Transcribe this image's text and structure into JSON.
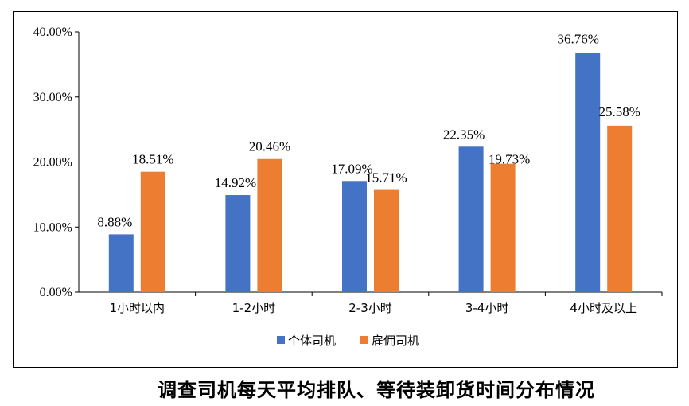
{
  "caption": "调查司机每天平均排队、等待装卸货时间分布情况",
  "chart_data": {
    "type": "bar",
    "categories": [
      "1小时以内",
      "1-2小时",
      "2-3小时",
      "3-4小时",
      "4小时及以上"
    ],
    "series": [
      {
        "name": "个体司机",
        "values": [
          8.88,
          14.92,
          17.09,
          22.35,
          36.76
        ],
        "color": "#4472C4",
        "labels": [
          "8.88%",
          "14.92%",
          "17.09%",
          "22.35%",
          "36.76%"
        ]
      },
      {
        "name": "雇佣司机",
        "values": [
          18.51,
          20.46,
          15.71,
          19.73,
          25.58
        ],
        "color": "#ED7D31",
        "labels": [
          "18.51%",
          "20.46%",
          "15.71%",
          "19.73%",
          "25.58%"
        ]
      }
    ],
    "ylim": [
      0,
      40
    ],
    "yticks": [
      0,
      10,
      20,
      30,
      40
    ],
    "ytick_labels": [
      "0.00%",
      "10.00%",
      "20.00%",
      "30.00%",
      "40.00%"
    ],
    "grid": false,
    "legend_position": "bottom"
  }
}
